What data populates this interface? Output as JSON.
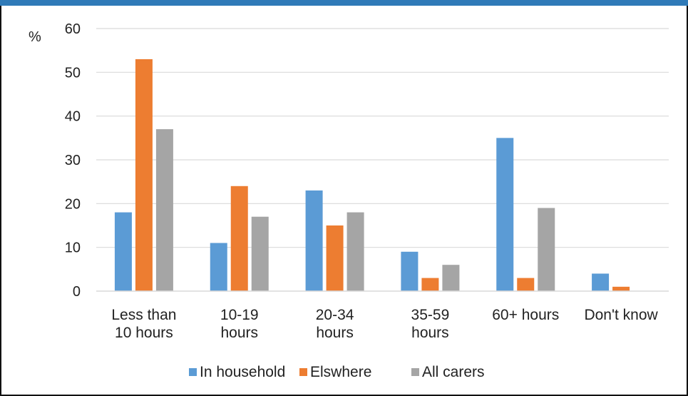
{
  "chart_data": {
    "type": "bar",
    "ylabel": "%",
    "ylim": [
      0,
      60
    ],
    "yticks": [
      0,
      10,
      20,
      30,
      40,
      50,
      60
    ],
    "grid": true,
    "legend_position": "bottom",
    "categories": [
      [
        "Less than",
        "10 hours"
      ],
      [
        "10-19",
        "hours"
      ],
      [
        "20-34",
        "hours"
      ],
      [
        "35-59",
        "hours"
      ],
      [
        "60+ hours"
      ],
      [
        "Don't know"
      ]
    ],
    "series": [
      {
        "name": "In household",
        "color": "#5b9bd5",
        "values": [
          18,
          11,
          23,
          9,
          35,
          4
        ]
      },
      {
        "name": "Elswhere",
        "color": "#ed7d31",
        "values": [
          53,
          24,
          15,
          3,
          3,
          1
        ]
      },
      {
        "name": "All carers",
        "color": "#a5a5a5",
        "values": [
          37,
          17,
          18,
          6,
          19,
          0
        ]
      }
    ]
  }
}
